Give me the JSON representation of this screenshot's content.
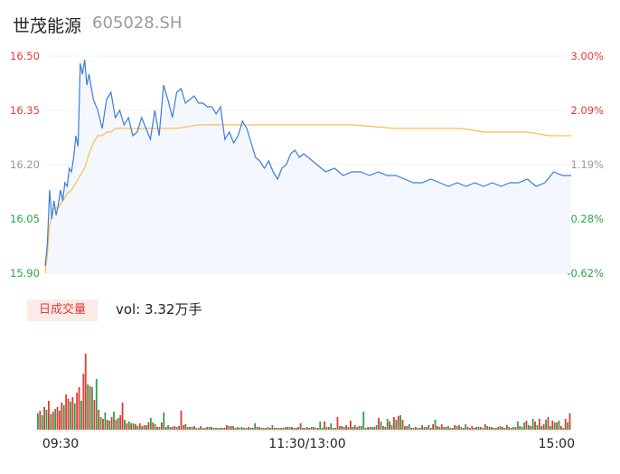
{
  "header": {
    "name": "世茂能源",
    "code": "605028.SH"
  },
  "price_axis": {
    "left_labels": [
      "16.50",
      "16.35",
      "16.20",
      "16.05",
      "15.90"
    ],
    "right_labels": [
      "3.00%",
      "2.09%",
      "1.19%",
      "0.28%",
      "-0.62%"
    ]
  },
  "volume": {
    "badge": "日成交量",
    "label": "vol: 3.32万手"
  },
  "time_axis": [
    "09:30",
    "11:30/13:00",
    "15:00"
  ],
  "colors": {
    "price_line": "#3b7ddd",
    "avg_line": "#f6c04f",
    "up": "#e53935",
    "down": "#2aa24b",
    "flat": "#999999"
  },
  "chart_data": [
    {
      "type": "line",
      "title": "",
      "xlabel": "",
      "ylabel": "",
      "ylim": [
        15.9,
        16.5
      ],
      "x_ticks": [
        "09:30",
        "11:30/13:00",
        "15:00"
      ],
      "series": [
        {
          "name": "",
          "kind": "price",
          "x": [
            0,
            1,
            2,
            3,
            4,
            5,
            6,
            7,
            8,
            9,
            10,
            11,
            12,
            13,
            14,
            15,
            16,
            17,
            18,
            19,
            20,
            22,
            24,
            26,
            28,
            30,
            32,
            34,
            36,
            38,
            40,
            42,
            44,
            46,
            48,
            50,
            52,
            54,
            56,
            58,
            60,
            62,
            64,
            66,
            68,
            70,
            72,
            74,
            76,
            78,
            80,
            82,
            84,
            86,
            88,
            90,
            92,
            94,
            96,
            98,
            100,
            102,
            104,
            106,
            108,
            110,
            112,
            114,
            116,
            118,
            120,
            124,
            128,
            132,
            136,
            140,
            144,
            148,
            152,
            156,
            160,
            164,
            168,
            172,
            176,
            180,
            184,
            188,
            192,
            196,
            200,
            204,
            208,
            212,
            216,
            220,
            224,
            228,
            232,
            236,
            240
          ],
          "values": [
            15.92,
            15.98,
            16.13,
            16.05,
            16.1,
            16.06,
            16.09,
            16.13,
            16.1,
            16.15,
            16.14,
            16.19,
            16.18,
            16.22,
            16.28,
            16.25,
            16.48,
            16.45,
            16.49,
            16.42,
            16.45,
            16.38,
            16.35,
            16.3,
            16.38,
            16.4,
            16.33,
            16.35,
            16.31,
            16.33,
            16.28,
            16.29,
            16.33,
            16.3,
            16.27,
            16.35,
            16.28,
            16.42,
            16.38,
            16.33,
            16.4,
            16.41,
            16.37,
            16.38,
            16.39,
            16.37,
            16.37,
            16.36,
            16.36,
            16.34,
            16.36,
            16.27,
            16.29,
            16.26,
            16.28,
            16.32,
            16.3,
            16.26,
            16.22,
            16.21,
            16.19,
            16.21,
            16.18,
            16.16,
            16.19,
            16.2,
            16.23,
            16.24,
            16.22,
            16.23,
            16.22,
            16.2,
            16.18,
            16.19,
            16.17,
            16.18,
            16.18,
            16.17,
            16.18,
            16.17,
            16.17,
            16.16,
            16.15,
            16.15,
            16.16,
            16.15,
            16.14,
            16.15,
            16.14,
            16.15,
            16.14,
            16.15,
            16.14,
            16.15,
            16.15,
            16.16,
            16.14,
            16.15,
            16.18,
            16.17,
            16.17
          ]
        },
        {
          "name": "",
          "kind": "average",
          "x": [
            0,
            1,
            2,
            3,
            4,
            6,
            8,
            10,
            12,
            14,
            16,
            18,
            20,
            22,
            24,
            26,
            28,
            30,
            32,
            40,
            50,
            60,
            70,
            80,
            90,
            100,
            110,
            120,
            140,
            160,
            180,
            190,
            200,
            210,
            220,
            230,
            240
          ],
          "values": [
            15.9,
            15.95,
            16.03,
            16.06,
            16.08,
            16.08,
            16.1,
            16.12,
            16.13,
            16.15,
            16.17,
            16.19,
            16.23,
            16.26,
            16.28,
            16.28,
            16.29,
            16.29,
            16.3,
            16.3,
            16.3,
            16.3,
            16.31,
            16.31,
            16.31,
            16.31,
            16.31,
            16.31,
            16.31,
            16.3,
            16.3,
            16.3,
            16.29,
            16.29,
            16.29,
            16.28,
            16.28
          ]
        }
      ]
    },
    {
      "type": "bar",
      "title": "",
      "values": [
        18,
        21,
        16,
        25,
        22,
        32,
        17,
        20,
        23,
        25,
        21,
        30,
        27,
        39,
        34,
        31,
        36,
        29,
        41,
        47,
        32,
        62,
        84,
        50,
        48,
        47,
        33,
        56,
        22,
        14,
        12,
        19,
        11,
        10,
        14,
        20,
        11,
        13,
        16,
        30,
        11,
        7,
        9,
        7,
        7,
        6,
        4,
        7,
        4,
        5,
        5,
        8,
        13,
        8,
        6,
        3,
        3,
        8,
        19,
        3,
        5,
        3,
        3,
        4,
        3,
        4,
        21,
        5,
        6,
        3,
        3,
        3,
        4,
        2,
        2,
        4,
        2,
        2,
        3,
        3,
        3,
        2,
        2,
        2,
        2,
        2,
        2,
        5,
        4,
        4,
        4,
        2,
        3,
        2,
        3,
        2,
        2,
        3,
        2,
        2,
        7,
        3,
        3,
        2,
        2,
        2,
        3,
        2,
        5,
        2,
        2,
        2,
        2,
        2,
        3,
        3,
        3,
        3,
        2,
        2,
        3,
        7,
        2,
        2,
        3,
        2,
        3,
        3,
        2,
        2,
        9,
        2,
        9,
        3,
        3,
        7,
        2,
        2,
        14,
        4,
        4,
        3,
        5,
        3,
        10,
        3,
        5,
        3,
        4,
        4,
        20,
        2,
        3,
        3,
        3,
        3,
        5,
        13,
        9,
        4,
        3,
        12,
        9,
        5,
        14,
        11,
        15,
        16,
        11,
        4,
        4,
        6,
        2,
        2,
        3,
        2,
        2,
        5,
        3,
        3,
        5,
        2,
        6,
        11,
        4,
        3,
        6,
        3,
        3,
        4,
        2,
        2,
        5,
        4,
        5,
        3,
        2,
        6,
        3,
        2,
        4,
        2,
        3,
        3,
        3,
        2,
        6,
        4,
        3,
        3,
        2,
        2,
        3,
        4,
        3,
        2,
        5,
        3,
        2,
        3,
        3,
        9,
        4,
        3,
        8,
        10,
        5,
        4,
        12,
        9,
        5,
        12,
        4,
        6,
        11,
        14,
        4,
        10,
        8,
        8,
        10,
        4,
        2,
        12,
        8,
        18
      ],
      "colors": [
        "down",
        "up",
        "down",
        "up",
        "down",
        "up",
        "down",
        "up",
        "down",
        "up",
        "up",
        "up",
        "down",
        "up",
        "up",
        "down",
        "up",
        "down",
        "up",
        "up",
        "down",
        "up",
        "up",
        "down",
        "up",
        "down",
        "up",
        "down",
        "up",
        "down",
        "up",
        "down",
        "up",
        "down",
        "up",
        "down",
        "up",
        "down",
        "up",
        "up",
        "down",
        "up",
        "down",
        "up",
        "down",
        "up",
        "down",
        "up",
        "down",
        "up",
        "down",
        "up",
        "down",
        "up",
        "down",
        "up",
        "down",
        "up",
        "down",
        "up",
        "down",
        "up",
        "down",
        "up",
        "down",
        "up",
        "up",
        "down",
        "up",
        "down",
        "up",
        "down",
        "up",
        "down",
        "up",
        "down",
        "up",
        "down",
        "up",
        "down",
        "up",
        "down",
        "up",
        "down",
        "up",
        "down",
        "up",
        "up",
        "down",
        "up",
        "down",
        "up",
        "down",
        "up",
        "down",
        "up",
        "down",
        "up",
        "down",
        "up",
        "down",
        "up",
        "down",
        "up",
        "down",
        "up",
        "down",
        "up",
        "down",
        "up",
        "down",
        "up",
        "down",
        "up",
        "down",
        "up",
        "down",
        "up",
        "down",
        "up",
        "down",
        "up",
        "down",
        "up",
        "down",
        "up",
        "down",
        "up",
        "down",
        "up",
        "down",
        "down",
        "up",
        "down",
        "up",
        "down",
        "up",
        "down",
        "up",
        "down",
        "up",
        "down",
        "up",
        "down",
        "up",
        "down",
        "up",
        "down",
        "up",
        "down",
        "down",
        "up",
        "down",
        "up",
        "down",
        "up",
        "down",
        "up",
        "down",
        "up",
        "down",
        "down",
        "up",
        "down",
        "up",
        "down",
        "up",
        "down",
        "up",
        "down",
        "up",
        "down",
        "up",
        "down",
        "up",
        "down",
        "up",
        "down",
        "up",
        "down",
        "up",
        "down",
        "up",
        "down",
        "up",
        "down",
        "up",
        "down",
        "up",
        "down",
        "up",
        "down",
        "up",
        "down",
        "up",
        "down",
        "up",
        "down",
        "up",
        "down",
        "up",
        "down",
        "up",
        "down",
        "up",
        "down",
        "up",
        "down",
        "up",
        "down",
        "up",
        "down",
        "up",
        "down",
        "up",
        "down",
        "up",
        "down",
        "up",
        "down",
        "up",
        "down",
        "up",
        "down",
        "down",
        "up",
        "down",
        "up",
        "down",
        "up",
        "down",
        "up",
        "down",
        "up",
        "down",
        "up",
        "down",
        "up",
        "down",
        "up",
        "down",
        "up",
        "down",
        "up",
        "down",
        "up",
        "down",
        "up",
        "up",
        "up",
        "flat"
      ]
    }
  ]
}
